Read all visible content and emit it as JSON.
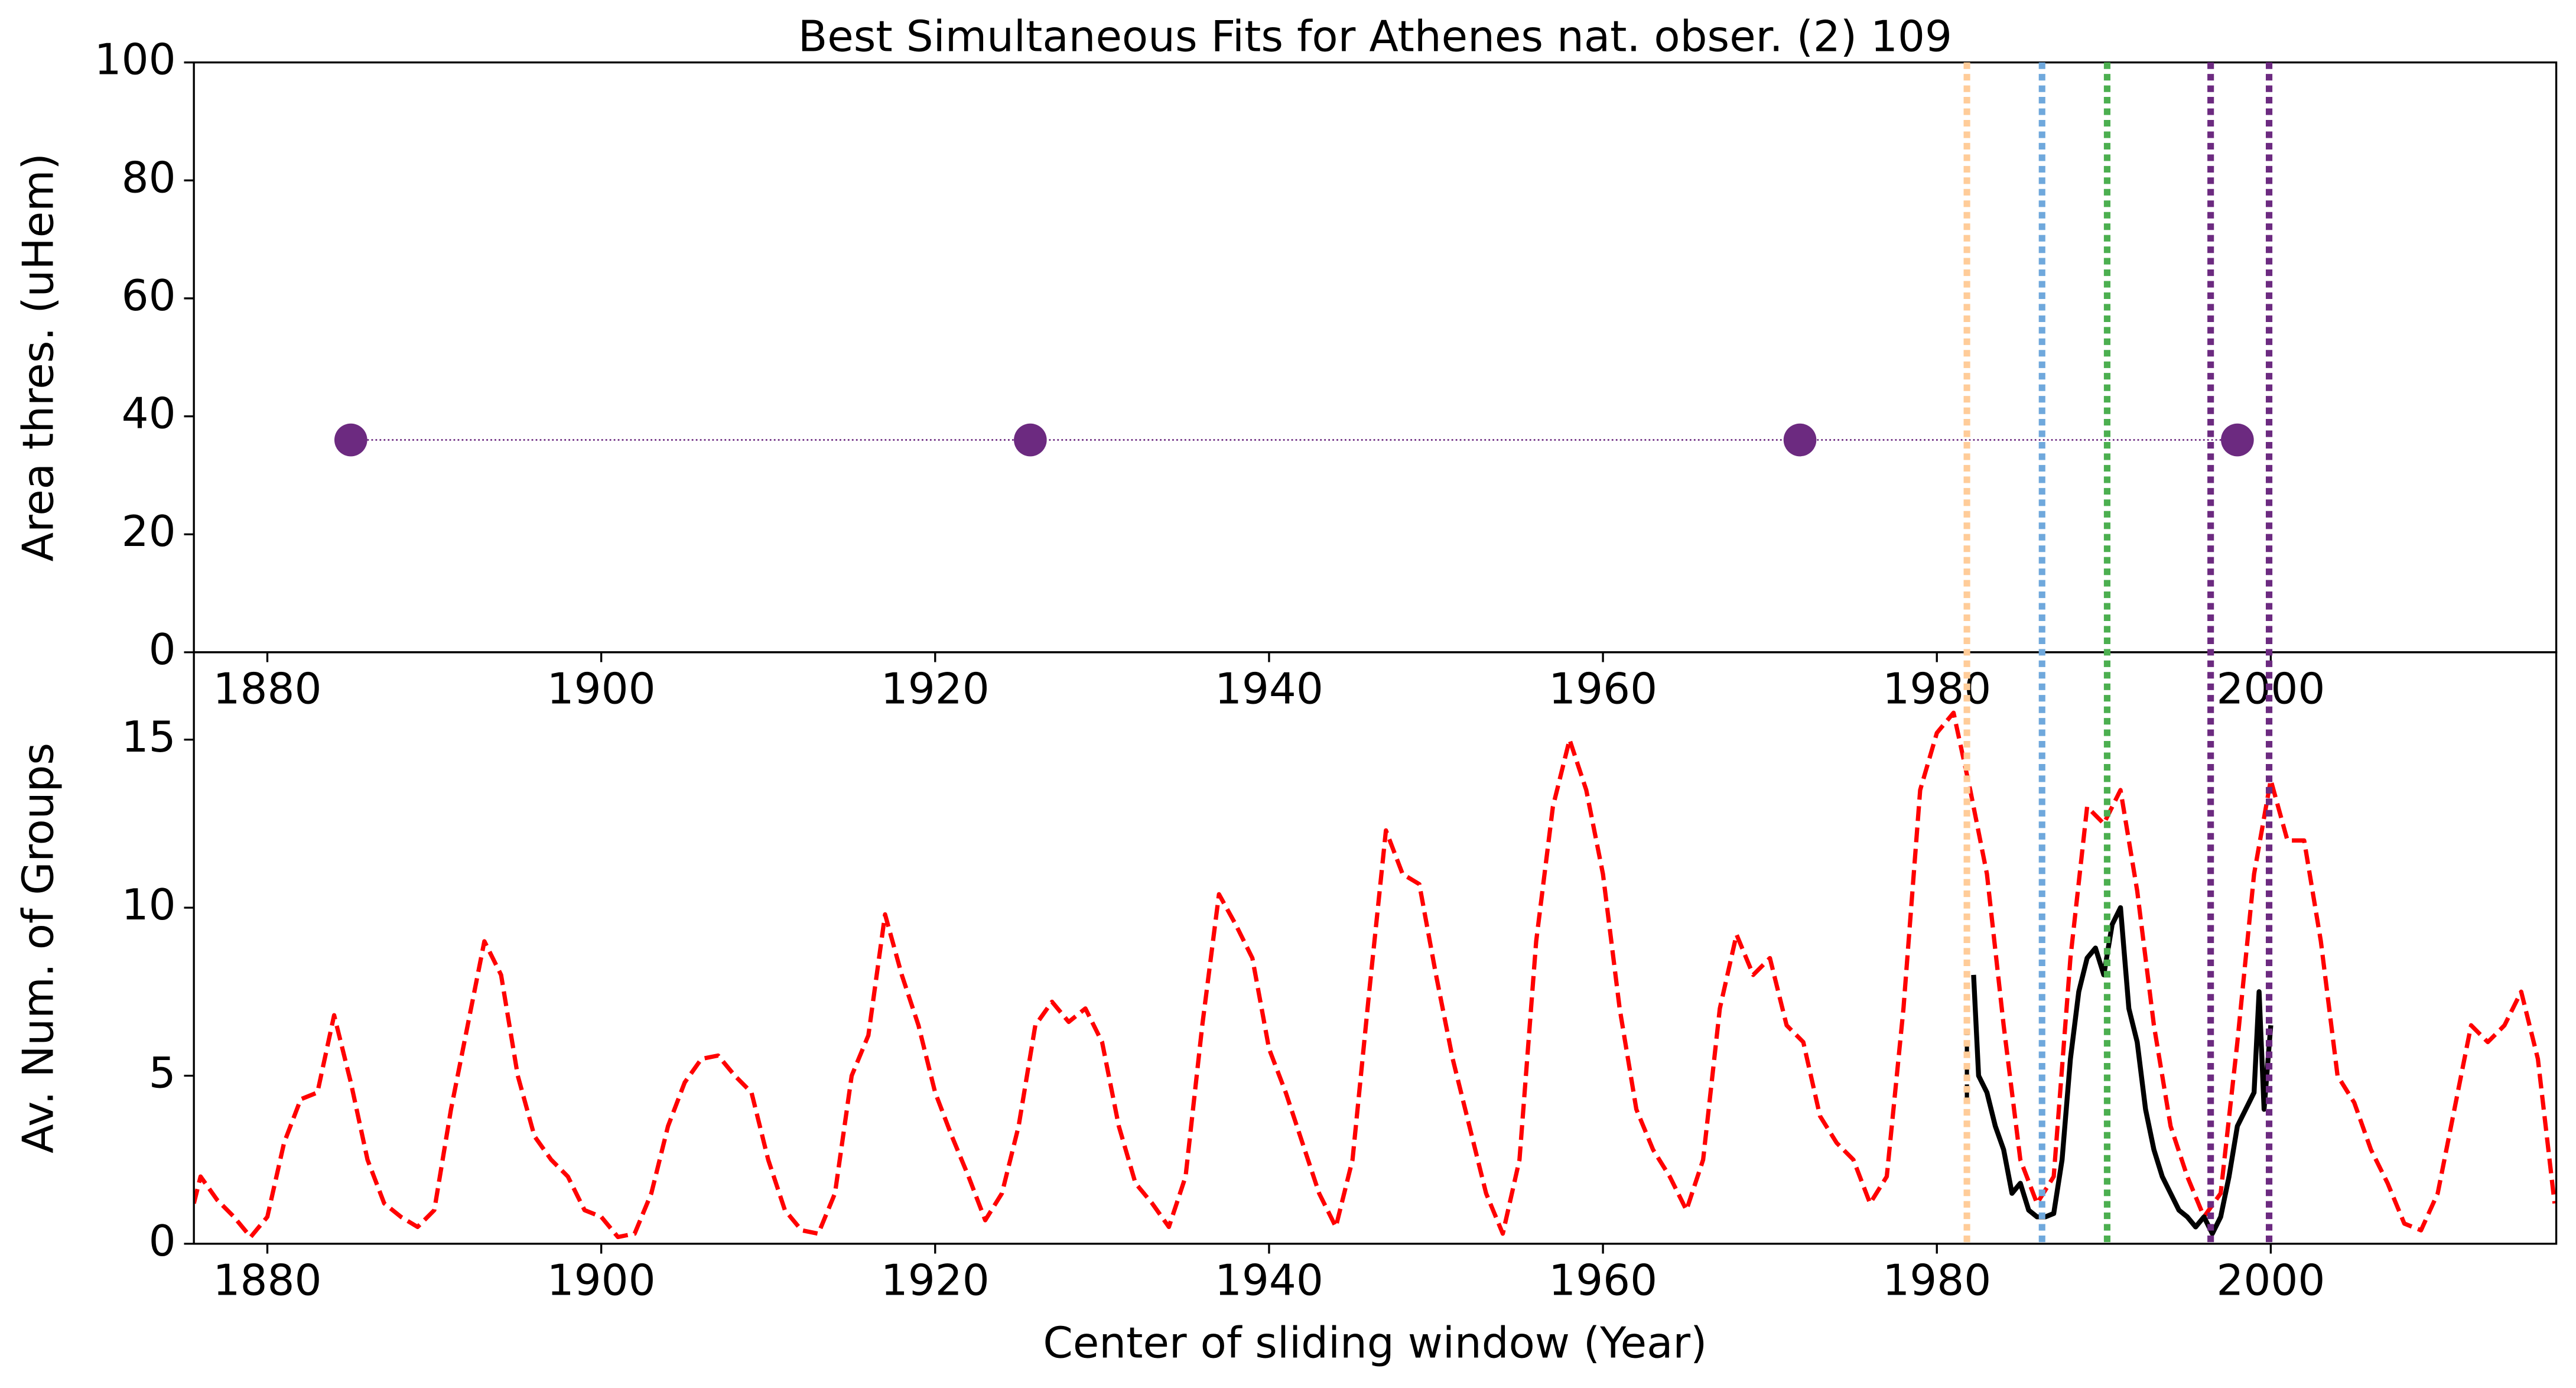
{
  "chart_data": [
    {
      "type": "scatter",
      "title": "Best Simultaneous Fits for Athenes nat. obser. (2) 109",
      "ylabel": "Area thres. (uHem)",
      "x": [
        1885,
        1925.7,
        1971.8,
        1998
      ],
      "values": [
        36,
        36,
        36,
        36
      ],
      "color": "#6c2a80",
      "connect": "dotted",
      "xlim": [
        1875.6,
        2017.1
      ],
      "ylim": [
        0,
        100
      ],
      "xticks": [
        1880,
        1900,
        1920,
        1940,
        1960,
        1980,
        2000
      ],
      "yticks": [
        0,
        20,
        40,
        60,
        80,
        100
      ],
      "vlines": [
        {
          "x": 1981.8,
          "color": "#ffcc99"
        },
        {
          "x": 1986.3,
          "color": "#6fa8dc"
        },
        {
          "x": 1990.2,
          "color": "#4caf50"
        },
        {
          "x": 1996.4,
          "color": "#6c2a80"
        },
        {
          "x": 1999.9,
          "color": "#6c2a80"
        }
      ]
    },
    {
      "type": "line",
      "ylabel": "Av. Num. of Groups",
      "xlabel": "Center of sliding window (Year)",
      "xlim": [
        1875.6,
        2017.1
      ],
      "ylim": [
        0,
        17.6
      ],
      "xticks": [
        1880,
        1900,
        1920,
        1940,
        1960,
        1980,
        2000
      ],
      "yticks": [
        0,
        5,
        10,
        15
      ],
      "series": [
        {
          "color": "#ff0000",
          "dash": "dashed",
          "x": [
            1875.6,
            1876,
            1877,
            1878,
            1879,
            1880,
            1881,
            1882,
            1883,
            1884,
            1885,
            1886,
            1887,
            1888,
            1889,
            1890,
            1891,
            1892,
            1893,
            1894,
            1895,
            1896,
            1897,
            1898,
            1899,
            1900,
            1901,
            1902,
            1903,
            1904,
            1905,
            1906,
            1907,
            1908,
            1909,
            1910,
            1911,
            1912,
            1913,
            1914,
            1915,
            1916,
            1917,
            1918,
            1919,
            1920,
            1921,
            1922,
            1923,
            1924,
            1925,
            1926,
            1927,
            1928,
            1929,
            1930,
            1931,
            1932,
            1933,
            1934,
            1935,
            1936,
            1937,
            1938,
            1939,
            1940,
            1941,
            1942,
            1943,
            1944,
            1945,
            1946,
            1947,
            1948,
            1949,
            1950,
            1951,
            1952,
            1953,
            1954,
            1955,
            1956,
            1957,
            1958,
            1959,
            1960,
            1961,
            1962,
            1963,
            1964,
            1965,
            1966,
            1967,
            1968,
            1969,
            1970,
            1971,
            1972,
            1973,
            1974,
            1975,
            1976,
            1977,
            1978,
            1979,
            1980,
            1981,
            1982,
            1983,
            1984,
            1985,
            1986,
            1987,
            1988,
            1989,
            1990,
            1991,
            1992,
            1993,
            1994,
            1995,
            1996,
            1997,
            1998,
            1999,
            2000,
            2001,
            2002,
            2003,
            2004,
            2005,
            2006,
            2007,
            2008,
            2009,
            2010,
            2011,
            2012,
            2013,
            2014,
            2015,
            2016,
            2017
          ],
          "values": [
            1.2,
            2.0,
            1.3,
            0.8,
            0.2,
            0.8,
            3.0,
            4.3,
            4.5,
            6.8,
            4.8,
            2.5,
            1.2,
            0.8,
            0.5,
            1.0,
            4.0,
            6.5,
            9.0,
            8.0,
            5.0,
            3.2,
            2.5,
            2.0,
            1.0,
            0.8,
            0.2,
            0.3,
            1.5,
            3.5,
            4.8,
            5.5,
            5.6,
            5.0,
            4.5,
            2.5,
            1.0,
            0.4,
            0.3,
            1.5,
            5.0,
            6.2,
            9.8,
            8.0,
            6.5,
            4.5,
            3.2,
            2.0,
            0.7,
            1.5,
            3.5,
            6.5,
            7.2,
            6.6,
            7.0,
            6.0,
            3.5,
            1.8,
            1.2,
            0.5,
            2.0,
            6.5,
            10.4,
            9.5,
            8.5,
            5.8,
            4.5,
            3.0,
            1.5,
            0.5,
            2.5,
            7.5,
            12.3,
            11.0,
            10.7,
            8.0,
            5.5,
            3.5,
            1.5,
            0.3,
            2.5,
            9.0,
            13.0,
            15.0,
            13.5,
            11.0,
            7.0,
            4.0,
            2.8,
            2.0,
            1.0,
            2.5,
            7.0,
            9.2,
            8.0,
            8.5,
            6.5,
            6.0,
            3.8,
            3.0,
            2.5,
            1.2,
            2.0,
            7.0,
            13.5,
            15.2,
            15.8,
            13.5,
            11.0,
            6.5,
            2.5,
            1.2,
            2.0,
            8.5,
            13.0,
            12.5,
            13.5,
            10.5,
            6.5,
            3.5,
            2.0,
            0.8,
            1.5,
            6.0,
            11.0,
            13.8,
            12.0,
            12.0,
            9.0,
            5.0,
            4.2,
            2.8,
            1.8,
            0.6,
            0.4,
            1.5,
            4.0,
            6.5,
            6.0,
            6.5,
            7.5,
            5.5,
            1.2
          ]
        },
        {
          "color": "#000000",
          "dash": "solid",
          "x": [
            1982.2,
            1982.5,
            1983,
            1983.5,
            1984,
            1984.5,
            1985,
            1985.5,
            1986,
            1986.5,
            1987,
            1987.5,
            1988,
            1988.5,
            1989,
            1989.5,
            1990,
            1990.5,
            1991,
            1991.5,
            1992,
            1992.5,
            1993,
            1993.5,
            1994,
            1994.5,
            1995,
            1995.5,
            1996,
            1996.5,
            1997,
            1997.5,
            1998,
            1998.5,
            1999,
            1999.3,
            1999.6,
            2000
          ],
          "values": [
            8.0,
            5.0,
            4.5,
            3.5,
            2.8,
            1.5,
            1.8,
            1.0,
            0.8,
            0.8,
            0.9,
            2.5,
            5.5,
            7.5,
            8.5,
            8.8,
            8.0,
            9.5,
            10.0,
            7.0,
            6.0,
            4.0,
            2.8,
            2.0,
            1.5,
            1.0,
            0.8,
            0.5,
            0.8,
            0.3,
            0.8,
            2.0,
            3.5,
            4.0,
            4.5,
            7.5,
            4.0,
            6.5
          ]
        },
        {
          "color": "#000000",
          "dash": "dashed",
          "x": [
            1981.8,
            1981.8
          ],
          "values": [
            4.3,
            6.3
          ]
        }
      ]
    }
  ]
}
